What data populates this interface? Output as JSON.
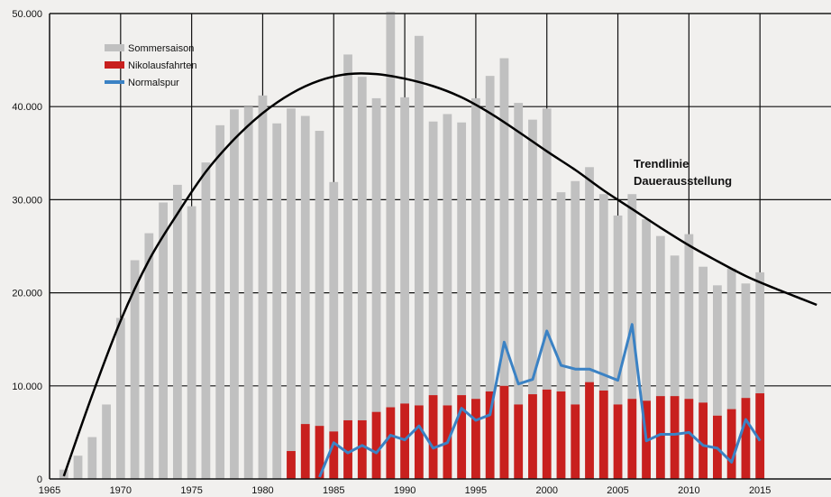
{
  "chart_data": {
    "type": "bar",
    "title": "",
    "xlabel": "",
    "ylabel": "",
    "xlim": [
      1965,
      2020
    ],
    "ylim": [
      0,
      50000
    ],
    "grid": true,
    "legend_position": "top-left",
    "x_ticks": [
      "1965",
      "1970",
      "1975",
      "1980",
      "1985",
      "1990",
      "1995",
      "2000",
      "2005",
      "2010",
      "2015"
    ],
    "y_ticks": [
      "0",
      "10.000",
      "20.000",
      "30.000",
      "40.000",
      "50.000"
    ],
    "colors": {
      "sommer": "#c0c0c0",
      "nikolaus": "#c8201e",
      "normalspur": "#3b82c4",
      "trend": "#000000",
      "grid": "#111111",
      "background": "#f1f0ee"
    },
    "series": [
      {
        "name": "Sommersaison",
        "type": "bar",
        "x": [
          1966,
          1967,
          1968,
          1969,
          1970,
          1971,
          1972,
          1973,
          1974,
          1975,
          1976,
          1977,
          1978,
          1979,
          1980,
          1981,
          1982,
          1983,
          1984,
          1985,
          1986,
          1987,
          1988,
          1989,
          1990,
          1991,
          1992,
          1993,
          1994,
          1995,
          1996,
          1997,
          1998,
          1999,
          2000,
          2001,
          2002,
          2003,
          2004,
          2005,
          2006,
          2007,
          2008,
          2009,
          2010,
          2011,
          2012,
          2013,
          2014,
          2015
        ],
        "values": [
          1000,
          2500,
          4500,
          8000,
          17300,
          23500,
          26400,
          29700,
          31600,
          29300,
          34000,
          38000,
          39700,
          40000,
          41200,
          38200,
          39800,
          39000,
          37400,
          31900,
          45600,
          43200,
          40900,
          50200,
          41000,
          47600,
          38400,
          39200,
          38300,
          40900,
          43300,
          45200,
          40400,
          38600,
          39800,
          30800,
          32000,
          33500,
          30600,
          28300,
          30600,
          27900,
          26100,
          24000,
          26300,
          22800,
          20800,
          22600,
          21000,
          22200
        ]
      },
      {
        "name": "Nikolausfahrten",
        "type": "bar",
        "x": [
          1982,
          1983,
          1984,
          1985,
          1986,
          1987,
          1988,
          1989,
          1990,
          1991,
          1992,
          1993,
          1994,
          1995,
          1996,
          1997,
          1998,
          1999,
          2000,
          2001,
          2002,
          2003,
          2004,
          2005,
          2006,
          2007,
          2008,
          2009,
          2010,
          2011,
          2012,
          2013,
          2014,
          2015
        ],
        "values": [
          3000,
          5900,
          5700,
          5100,
          6300,
          6300,
          7200,
          7700,
          8100,
          7900,
          9000,
          7900,
          9000,
          8600,
          9400,
          10000,
          8000,
          9100,
          9600,
          9400,
          8000,
          10400,
          9500,
          8000,
          8600,
          8400,
          8900,
          8900,
          8600,
          8200,
          6800,
          7500,
          8700,
          9200
        ]
      },
      {
        "name": "Normalspur",
        "type": "line",
        "x": [
          1984,
          1985,
          1986,
          1987,
          1988,
          1989,
          1990,
          1991,
          1992,
          1993,
          1994,
          1995,
          1996,
          1997,
          1998,
          1999,
          2000,
          2001,
          2002,
          2003,
          2004,
          2005,
          2006,
          2007,
          2008,
          2009,
          2010,
          2011,
          2012,
          2013,
          2014,
          2015
        ],
        "values": [
          200,
          3900,
          2800,
          3600,
          2800,
          4700,
          4200,
          5700,
          3300,
          3900,
          7600,
          6300,
          6900,
          14700,
          10200,
          10700,
          15900,
          12200,
          11800,
          11800,
          11200,
          10600,
          16600,
          4100,
          4800,
          4800,
          5000,
          3600,
          3300,
          1800,
          6400,
          4100
        ]
      },
      {
        "name": "Trendlinie Dauerausstellung",
        "type": "line",
        "x": [
          1966,
          1968,
          1970,
          1972,
          1974,
          1976,
          1978,
          1980,
          1982,
          1984,
          1986,
          1988,
          1990,
          1992,
          1994,
          1996,
          1998,
          2000,
          2002,
          2004,
          2006,
          2008,
          2010,
          2012,
          2014,
          2016,
          2018,
          2019
        ],
        "values": [
          300,
          9000,
          17000,
          23500,
          28500,
          33000,
          36500,
          39300,
          41400,
          42800,
          43500,
          43500,
          43000,
          42200,
          41000,
          39300,
          37300,
          35200,
          33200,
          31000,
          29000,
          27000,
          25100,
          23400,
          21800,
          20500,
          19300,
          18700
        ]
      }
    ],
    "annotations": [
      "Trendlinie",
      "Dauerausstellung"
    ]
  }
}
